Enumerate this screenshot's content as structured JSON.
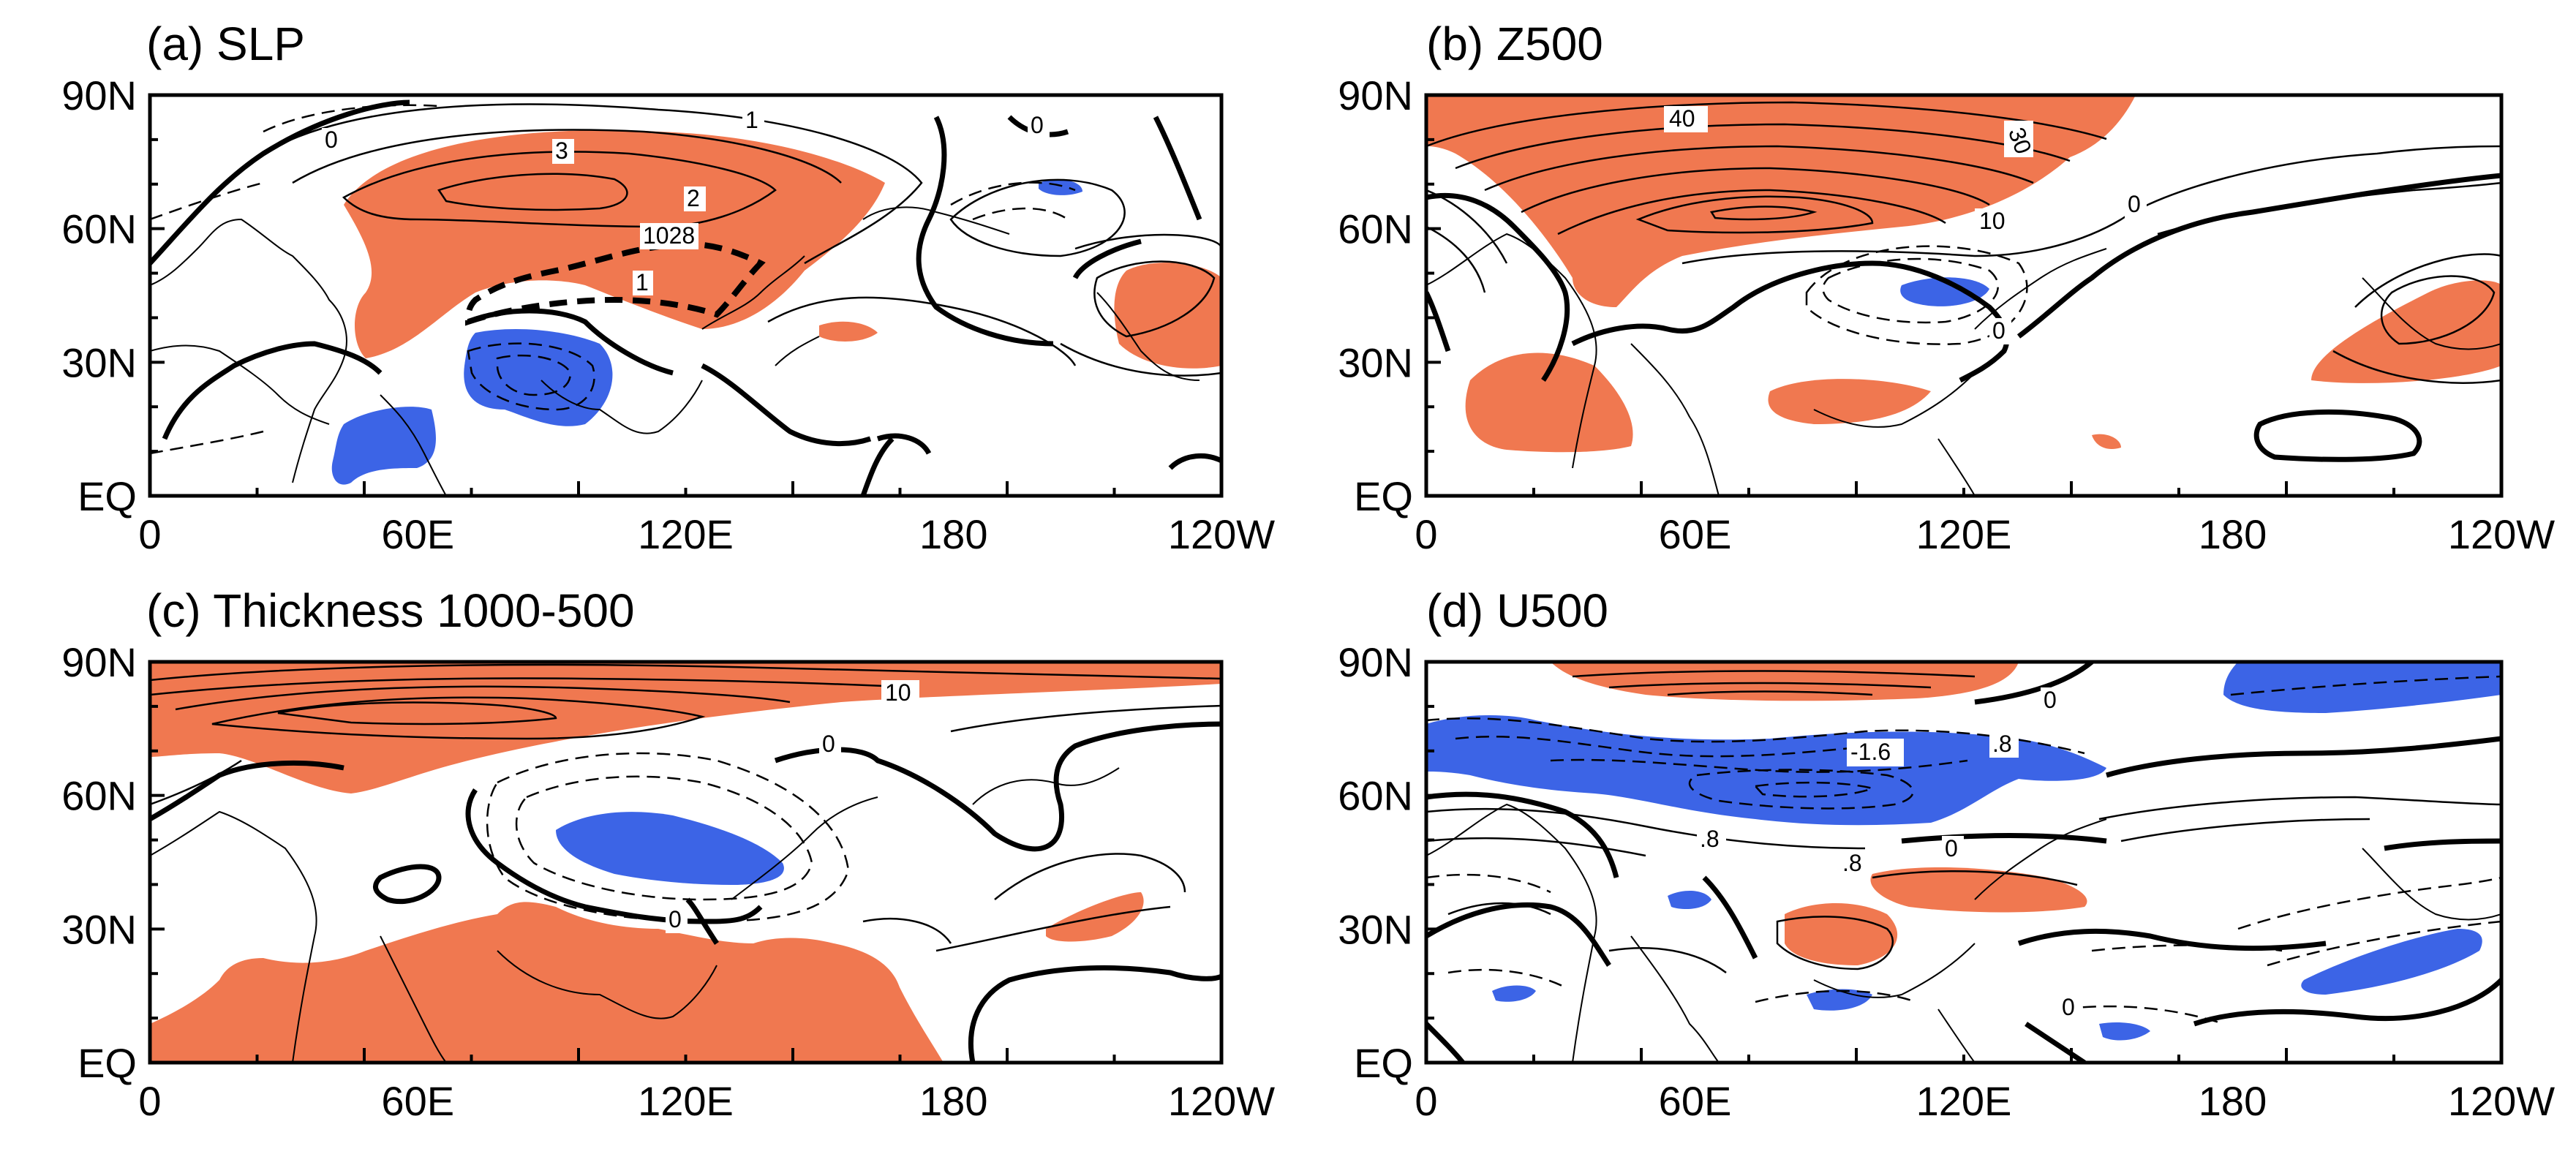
{
  "figure": {
    "colors": {
      "positive": "#f07850",
      "negative": "#3c64e6",
      "contour": "#000000"
    },
    "axes": {
      "x_tick_labels": [
        "0",
        "60E",
        "120E",
        "180",
        "120W"
      ],
      "y_tick_labels": [
        "EQ",
        "30N",
        "60N",
        "90N"
      ]
    },
    "panels": [
      {
        "title": "(a) SLP",
        "contour_labels": [
          "0",
          "1",
          "3",
          "2",
          "1028",
          "1",
          "0"
        ]
      },
      {
        "title": "(b) Z500",
        "contour_labels": [
          "40",
          "30",
          "10",
          "0",
          "0"
        ]
      },
      {
        "title": "(c) Thickness 1000-500",
        "contour_labels": [
          "10",
          "0",
          "0"
        ]
      },
      {
        "title": "(d) U500",
        "contour_labels": [
          "0",
          "-1.6",
          ".8",
          ".8",
          ".8",
          "0",
          "0"
        ]
      }
    ]
  }
}
